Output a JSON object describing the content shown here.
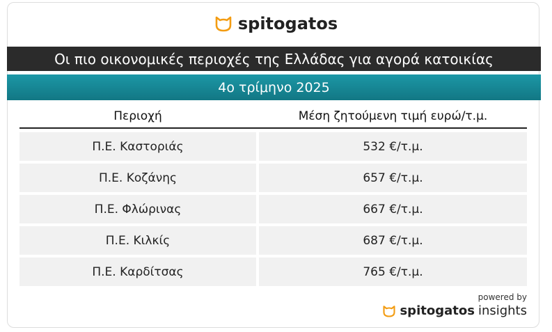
{
  "header": {
    "brand": "spitogatos",
    "title": "Οι πιο οικονομικές περιοχές της Ελλάδας για αγορά κατοικίας",
    "subtitle": "4ο τρίμηνο 2025"
  },
  "table": {
    "columns": [
      "Περιοχή",
      "Μέση ζητούμενη τιμή ευρώ/τ.μ."
    ],
    "rows": [
      [
        "Π.Ε. Καστοριάς",
        "532 €/τ.μ."
      ],
      [
        "Π.Ε. Κοζάνης",
        "657 €/τ.μ."
      ],
      [
        "Π.Ε. Φλώρινας",
        "667 €/τ.μ."
      ],
      [
        "Π.Ε. Κιλκίς",
        "687 €/τ.μ."
      ],
      [
        "Π.Ε. Καρδίτσας",
        "765 €/τ.μ."
      ]
    ]
  },
  "footer": {
    "powered_by": "powered by",
    "brand": "spitogatos",
    "product": "insights"
  }
}
